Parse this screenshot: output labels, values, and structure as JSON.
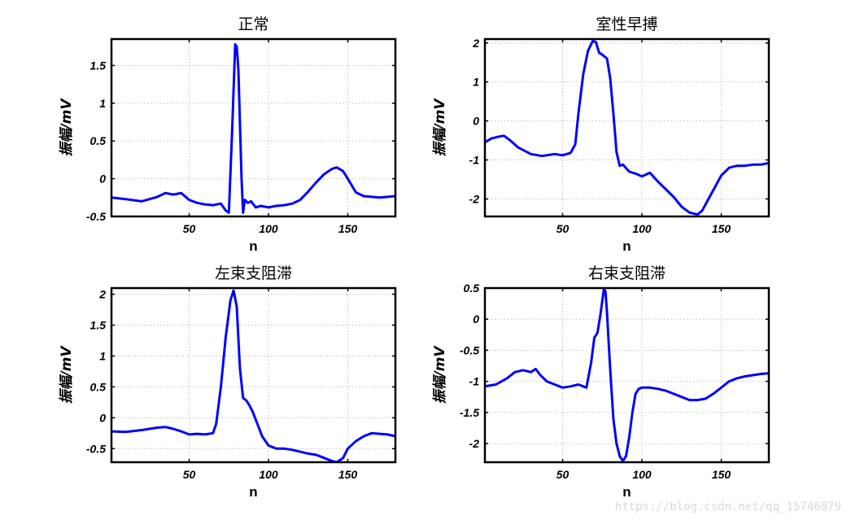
{
  "watermark": "https://blog.csdn.net/qq_15746879",
  "chart_data": [
    {
      "type": "line",
      "title": "正常",
      "xlabel": "n",
      "ylabel": "振幅/mV",
      "xlim": [
        1,
        180
      ],
      "ylim": [
        -0.5,
        1.85
      ],
      "xticks": [
        50,
        100,
        150
      ],
      "yticks": [
        -0.5,
        0,
        0.5,
        1,
        1.5
      ],
      "yticklabels": [
        "-0.5",
        "0",
        "0.5",
        "1",
        "1.5"
      ],
      "grid": true,
      "series": [
        {
          "color": "#0000ff",
          "x": [
            1,
            10,
            20,
            30,
            35,
            40,
            45,
            50,
            55,
            60,
            65,
            70,
            73,
            75,
            77,
            79,
            80,
            81,
            83,
            84,
            85,
            87,
            89,
            92,
            95,
            100,
            105,
            110,
            115,
            120,
            125,
            130,
            135,
            140,
            143,
            147,
            150,
            155,
            160,
            165,
            170,
            175,
            180
          ],
          "y": [
            -0.25,
            -0.27,
            -0.3,
            -0.24,
            -0.19,
            -0.21,
            -0.19,
            -0.28,
            -0.32,
            -0.34,
            -0.35,
            -0.33,
            -0.42,
            -0.45,
            0.6,
            1.78,
            1.75,
            1.45,
            0.0,
            -0.45,
            -0.28,
            -0.32,
            -0.3,
            -0.38,
            -0.36,
            -0.38,
            -0.36,
            -0.35,
            -0.33,
            -0.28,
            -0.17,
            -0.05,
            0.06,
            0.13,
            0.15,
            0.1,
            0.0,
            -0.18,
            -0.23,
            -0.24,
            -0.25,
            -0.24,
            -0.23
          ]
        }
      ]
    },
    {
      "type": "line",
      "title": "室性早搏",
      "xlabel": "n",
      "ylabel": "振幅/mV",
      "xlim": [
        1,
        180
      ],
      "ylim": [
        -2.45,
        2.1
      ],
      "xticks": [
        50,
        100,
        150
      ],
      "yticks": [
        -2,
        -1,
        0,
        1,
        2
      ],
      "yticklabels": [
        "-2",
        "-1",
        "0",
        "1",
        "2"
      ],
      "grid": true,
      "series": [
        {
          "color": "#0000ff",
          "x": [
            1,
            5,
            10,
            13,
            17,
            22,
            30,
            37,
            45,
            50,
            55,
            58,
            60,
            63,
            66,
            69,
            71,
            73,
            75,
            78,
            80,
            82,
            84,
            86,
            88,
            92,
            96,
            100,
            105,
            110,
            115,
            120,
            125,
            130,
            135,
            138,
            142,
            146,
            150,
            155,
            160,
            165,
            170,
            175,
            180
          ],
          "y": [
            -0.55,
            -0.45,
            -0.4,
            -0.38,
            -0.5,
            -0.68,
            -0.85,
            -0.9,
            -0.85,
            -0.88,
            -0.82,
            -0.6,
            0.2,
            1.2,
            1.8,
            2.05,
            2.02,
            1.75,
            1.7,
            1.6,
            1.1,
            0.2,
            -0.8,
            -1.15,
            -1.12,
            -1.3,
            -1.35,
            -1.42,
            -1.33,
            -1.55,
            -1.75,
            -1.95,
            -2.2,
            -2.35,
            -2.4,
            -2.3,
            -2.0,
            -1.7,
            -1.4,
            -1.2,
            -1.15,
            -1.15,
            -1.12,
            -1.12,
            -1.08
          ]
        }
      ]
    },
    {
      "type": "line",
      "title": "左束支阻滞",
      "xlabel": "n",
      "ylabel": "振幅/mV",
      "xlim": [
        1,
        180
      ],
      "ylim": [
        -0.72,
        2.1
      ],
      "xticks": [
        50,
        100,
        150
      ],
      "yticks": [
        -0.5,
        0,
        0.5,
        1,
        1.5,
        2
      ],
      "yticklabels": [
        "-0.5",
        "0",
        "0.5",
        "1",
        "1.5",
        "2"
      ],
      "grid": true,
      "series": [
        {
          "color": "#0000ff",
          "x": [
            1,
            10,
            20,
            30,
            35,
            40,
            45,
            50,
            55,
            60,
            65,
            67,
            70,
            73,
            76,
            78,
            80,
            82,
            84,
            86,
            88,
            90,
            93,
            96,
            100,
            105,
            110,
            115,
            120,
            125,
            130,
            135,
            140,
            143,
            147,
            150,
            155,
            160,
            165,
            170,
            175,
            180
          ],
          "y": [
            -0.22,
            -0.23,
            -0.2,
            -0.16,
            -0.15,
            -0.18,
            -0.22,
            -0.27,
            -0.26,
            -0.27,
            -0.25,
            -0.1,
            0.5,
            1.3,
            1.9,
            2.06,
            1.8,
            0.8,
            0.32,
            0.28,
            0.2,
            0.1,
            -0.1,
            -0.3,
            -0.45,
            -0.5,
            -0.5,
            -0.52,
            -0.55,
            -0.58,
            -0.6,
            -0.65,
            -0.7,
            -0.72,
            -0.65,
            -0.5,
            -0.38,
            -0.3,
            -0.25,
            -0.26,
            -0.27,
            -0.3
          ]
        }
      ]
    },
    {
      "type": "line",
      "title": "右束支阻滞",
      "xlabel": "n",
      "ylabel": "振幅/mV",
      "xlim": [
        1,
        180
      ],
      "ylim": [
        -2.3,
        0.5
      ],
      "xticks": [
        50,
        100,
        150
      ],
      "yticks": [
        -2,
        -1.5,
        -1,
        -0.5,
        0,
        0.5
      ],
      "yticklabels": [
        "-2",
        "-1.5",
        "-1",
        "-0.5",
        "0",
        "0.5"
      ],
      "grid": true,
      "series": [
        {
          "color": "#0000ff",
          "x": [
            1,
            8,
            15,
            20,
            25,
            30,
            33,
            36,
            40,
            45,
            50,
            55,
            60,
            65,
            68,
            70,
            72,
            74,
            76,
            77,
            78,
            80,
            82,
            84,
            86,
            88,
            90,
            92,
            94,
            96,
            98,
            100,
            105,
            110,
            115,
            120,
            125,
            130,
            135,
            140,
            145,
            150,
            155,
            160,
            165,
            170,
            175,
            180
          ],
          "y": [
            -1.08,
            -1.05,
            -0.95,
            -0.85,
            -0.82,
            -0.85,
            -0.8,
            -0.9,
            -1.0,
            -1.05,
            -1.1,
            -1.08,
            -1.05,
            -1.1,
            -0.7,
            -0.3,
            -0.22,
            0.1,
            0.48,
            0.45,
            0.1,
            -0.8,
            -1.6,
            -2.0,
            -2.2,
            -2.28,
            -2.2,
            -1.9,
            -1.5,
            -1.2,
            -1.12,
            -1.1,
            -1.1,
            -1.12,
            -1.15,
            -1.2,
            -1.25,
            -1.3,
            -1.3,
            -1.28,
            -1.2,
            -1.1,
            -1.0,
            -0.95,
            -0.92,
            -0.9,
            -0.88,
            -0.87
          ]
        }
      ]
    }
  ]
}
